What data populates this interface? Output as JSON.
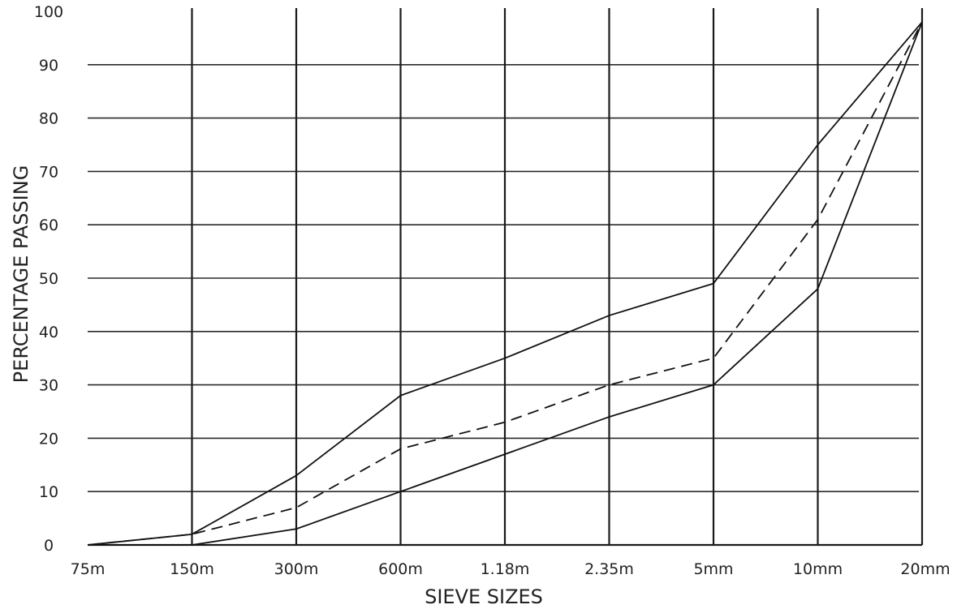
{
  "chart_data": {
    "type": "line",
    "title": "",
    "xlabel": "SIEVE SIZES",
    "ylabel": "PERCENTAGE PASSING",
    "categories": [
      "75m",
      "150m",
      "300m",
      "600m",
      "1.18m",
      "2.35m",
      "5mm",
      "10mm",
      "20mm"
    ],
    "ylim": [
      0,
      100
    ],
    "yticks": [
      0,
      10,
      20,
      30,
      40,
      50,
      60,
      70,
      80,
      90,
      100
    ],
    "grid": true,
    "series": [
      {
        "style": "solid",
        "values": [
          0,
          2,
          13,
          28,
          35,
          43,
          49,
          75,
          98
        ]
      },
      {
        "style": "dashed",
        "values": [
          0,
          2,
          7,
          18,
          23,
          30,
          35,
          61,
          98
        ]
      },
      {
        "style": "solid",
        "values": [
          0,
          0,
          3,
          10,
          17,
          24,
          30,
          48,
          98
        ]
      }
    ]
  }
}
